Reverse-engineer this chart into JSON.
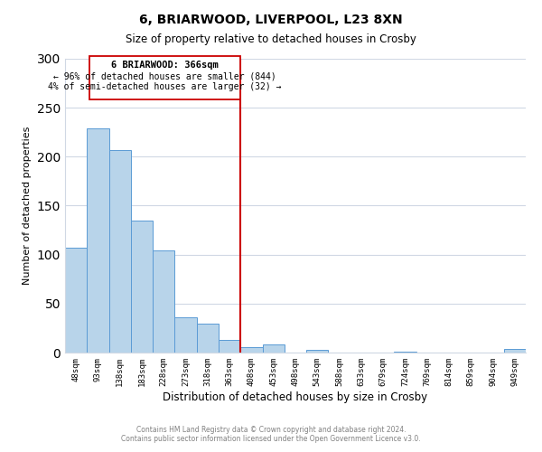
{
  "title": "6, BRIARWOOD, LIVERPOOL, L23 8XN",
  "subtitle": "Size of property relative to detached houses in Crosby",
  "xlabel": "Distribution of detached houses by size in Crosby",
  "ylabel": "Number of detached properties",
  "categories": [
    "48sqm",
    "93sqm",
    "138sqm",
    "183sqm",
    "228sqm",
    "273sqm",
    "318sqm",
    "363sqm",
    "408sqm",
    "453sqm",
    "498sqm",
    "543sqm",
    "588sqm",
    "633sqm",
    "679sqm",
    "724sqm",
    "769sqm",
    "814sqm",
    "859sqm",
    "904sqm",
    "949sqm"
  ],
  "values": [
    107,
    229,
    207,
    135,
    104,
    36,
    30,
    13,
    6,
    8,
    0,
    3,
    0,
    0,
    0,
    1,
    0,
    0,
    0,
    0,
    4
  ],
  "bar_color": "#b8d4ea",
  "bar_edge_color": "#5b9bd5",
  "vline_color": "#cc0000",
  "annotation_line1": "6 BRIARWOOD: 366sqm",
  "annotation_line2": "← 96% of detached houses are smaller (844)",
  "annotation_line3": "4% of semi-detached houses are larger (32) →",
  "ylim": [
    0,
    300
  ],
  "yticks": [
    0,
    50,
    100,
    150,
    200,
    250,
    300
  ],
  "background_color": "#ffffff",
  "grid_color": "#d0d8e4",
  "footer_line1": "Contains HM Land Registry data © Crown copyright and database right 2024.",
  "footer_line2": "Contains public sector information licensed under the Open Government Licence v3.0."
}
